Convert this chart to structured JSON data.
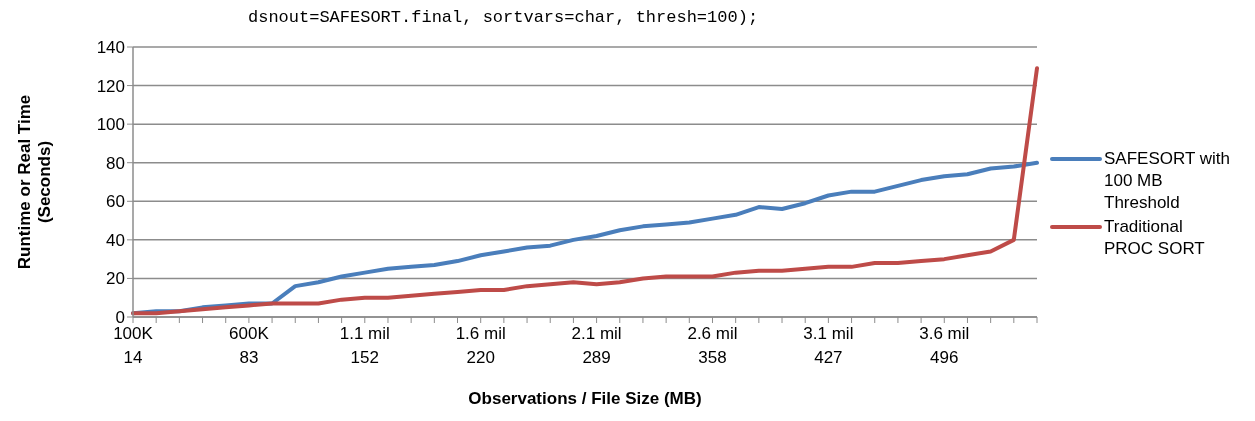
{
  "chart_data": {
    "type": "line",
    "xlabel": "Observations / File Size (MB)",
    "ylabel": "Runtime or Real Time\n(Seconds)",
    "annotations": [
      "dsnout=SAFESORT.final, sortvars=char, thresh=100);"
    ],
    "categories": [
      "100K\n14",
      null,
      null,
      null,
      null,
      "600K\n83",
      null,
      null,
      null,
      null,
      "1.1 mil\n152",
      null,
      null,
      null,
      null,
      "1.6 mil\n220",
      null,
      null,
      null,
      null,
      "2.1 mil\n289",
      null,
      null,
      null,
      null,
      "2.6 mil\n358",
      null,
      null,
      null,
      null,
      "3.1 mil\n427",
      null,
      null,
      null,
      null,
      "3.6 mil\n496",
      null,
      null,
      null,
      null
    ],
    "series": [
      {
        "name": "SAFESORT with 100 MB Threshold",
        "color": "#4a7ebb",
        "values": [
          2,
          3,
          3,
          5,
          6,
          7,
          7,
          16,
          18,
          21,
          23,
          25,
          26,
          27,
          29,
          32,
          34,
          36,
          37,
          40,
          42,
          45,
          47,
          48,
          49,
          51,
          53,
          57,
          56,
          59,
          63,
          65,
          65,
          68,
          71,
          73,
          74,
          77,
          78,
          80
        ]
      },
      {
        "name": "Traditional PROC SORT",
        "color": "#be4b48",
        "values": [
          2,
          2,
          3,
          4,
          5,
          6,
          7,
          7,
          7,
          9,
          10,
          10,
          11,
          12,
          13,
          14,
          14,
          16,
          17,
          18,
          17,
          18,
          20,
          21,
          21,
          21,
          23,
          24,
          24,
          25,
          26,
          26,
          28,
          28,
          29,
          30,
          32,
          34,
          40,
          129
        ]
      }
    ],
    "ylim": [
      0,
      140
    ],
    "yticks": [
      0,
      20,
      40,
      60,
      80,
      100,
      120,
      140
    ],
    "grid": "y",
    "legend": "right",
    "marker": "none",
    "line_style": "solid"
  }
}
